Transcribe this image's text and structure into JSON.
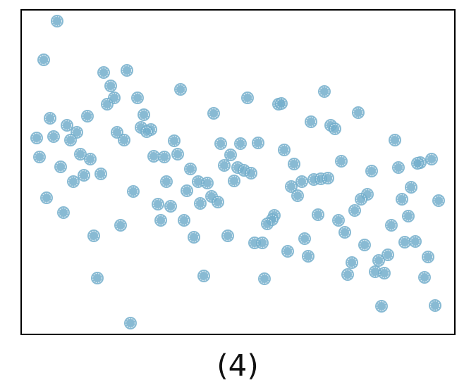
{
  "chart_data": {
    "type": "scatter",
    "title": "(4)",
    "color": "#73aecb",
    "xlim": [
      0,
      615
    ],
    "ylim": [
      0,
      461
    ],
    "x": [
      51,
      32,
      117,
      150,
      127,
      226,
      430,
      165,
      132,
      321,
      122,
      365,
      369,
      478,
      273,
      41,
      94,
      174,
      411,
      439,
      445,
      65,
      170,
      184,
      79,
      136,
      178,
      22,
      46,
      70,
      146,
      217,
      530,
      283,
      311,
      336,
      373,
      84,
      26,
      98,
      188,
      203,
      222,
      297,
      582,
      566,
      562,
      454,
      56,
      288,
      307,
      316,
      326,
      387,
      535,
      497,
      240,
      113,
      89,
      74,
      206,
      251,
      264,
      302,
      415,
      425,
      435,
      398,
      383,
      553,
      235,
      159,
      36,
      270,
      279,
      254,
      194,
      212,
      392,
      491,
      482,
      473,
      540,
      592,
      60,
      359,
      356,
      349,
      421,
      450,
      549,
      198,
      231,
      141,
      525,
      459,
      103,
      245,
      293,
      402,
      331,
      342,
      487,
      544,
      559,
      378,
      520,
      577,
      407,
      507,
      469,
      463,
      502,
      515,
      108,
      259,
      345,
      572,
      511,
      587,
      155
    ],
    "y": [
      445,
      390,
      372,
      375,
      353,
      348,
      345,
      336,
      336,
      336,
      327,
      327,
      328,
      315,
      314,
      307,
      310,
      312,
      302,
      297,
      292,
      297,
      294,
      291,
      287,
      287,
      288,
      279,
      281,
      276,
      276,
      275,
      276,
      271,
      271,
      272,
      262,
      256,
      252,
      249,
      253,
      252,
      256,
      255,
      249,
      244,
      243,
      246,
      238,
      240,
      237,
      233,
      229,
      242,
      237,
      232,
      235,
      228,
      226,
      217,
      217,
      217,
      215,
      218,
      220,
      221,
      222,
      217,
      210,
      209,
      204,
      203,
      194,
      196,
      188,
      186,
      185,
      182,
      197,
      199,
      192,
      176,
      192,
      190,
      173,
      169,
      163,
      157,
      170,
      162,
      168,
      162,
      162,
      155,
      155,
      145,
      140,
      138,
      140,
      136,
      130,
      130,
      127,
      131,
      132,
      118,
      113,
      110,
      111,
      105,
      102,
      85,
      89,
      87,
      80,
      83,
      79,
      81,
      40,
      41,
      16
    ]
  }
}
